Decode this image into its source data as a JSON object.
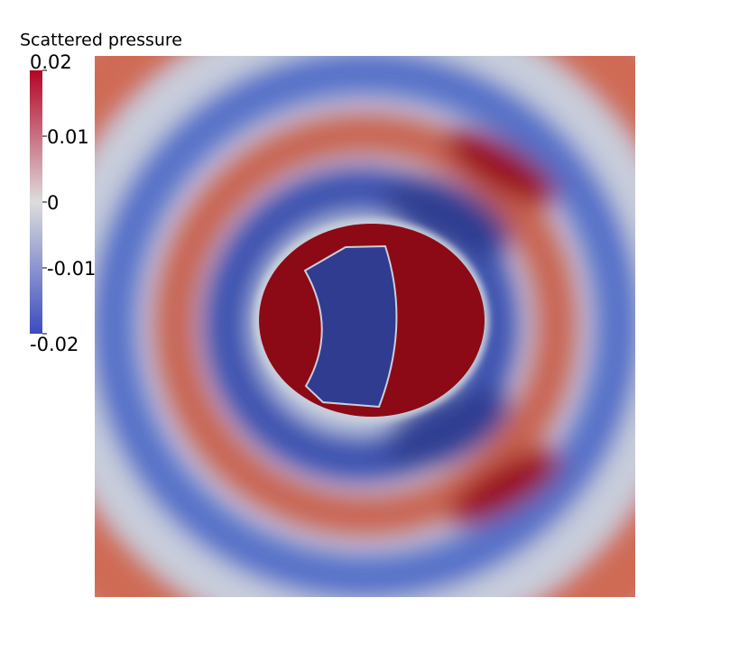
{
  "chart_data": {
    "type": "field",
    "colorbar": {
      "title": "Scattered pressure",
      "lim": [
        -0.02,
        0.02
      ],
      "ticks": [
        0.02,
        0.01,
        0,
        -0.01,
        -0.02
      ],
      "colormap": [
        "#3b4cc0",
        "#dddddd",
        "#b40426"
      ]
    }
  }
}
